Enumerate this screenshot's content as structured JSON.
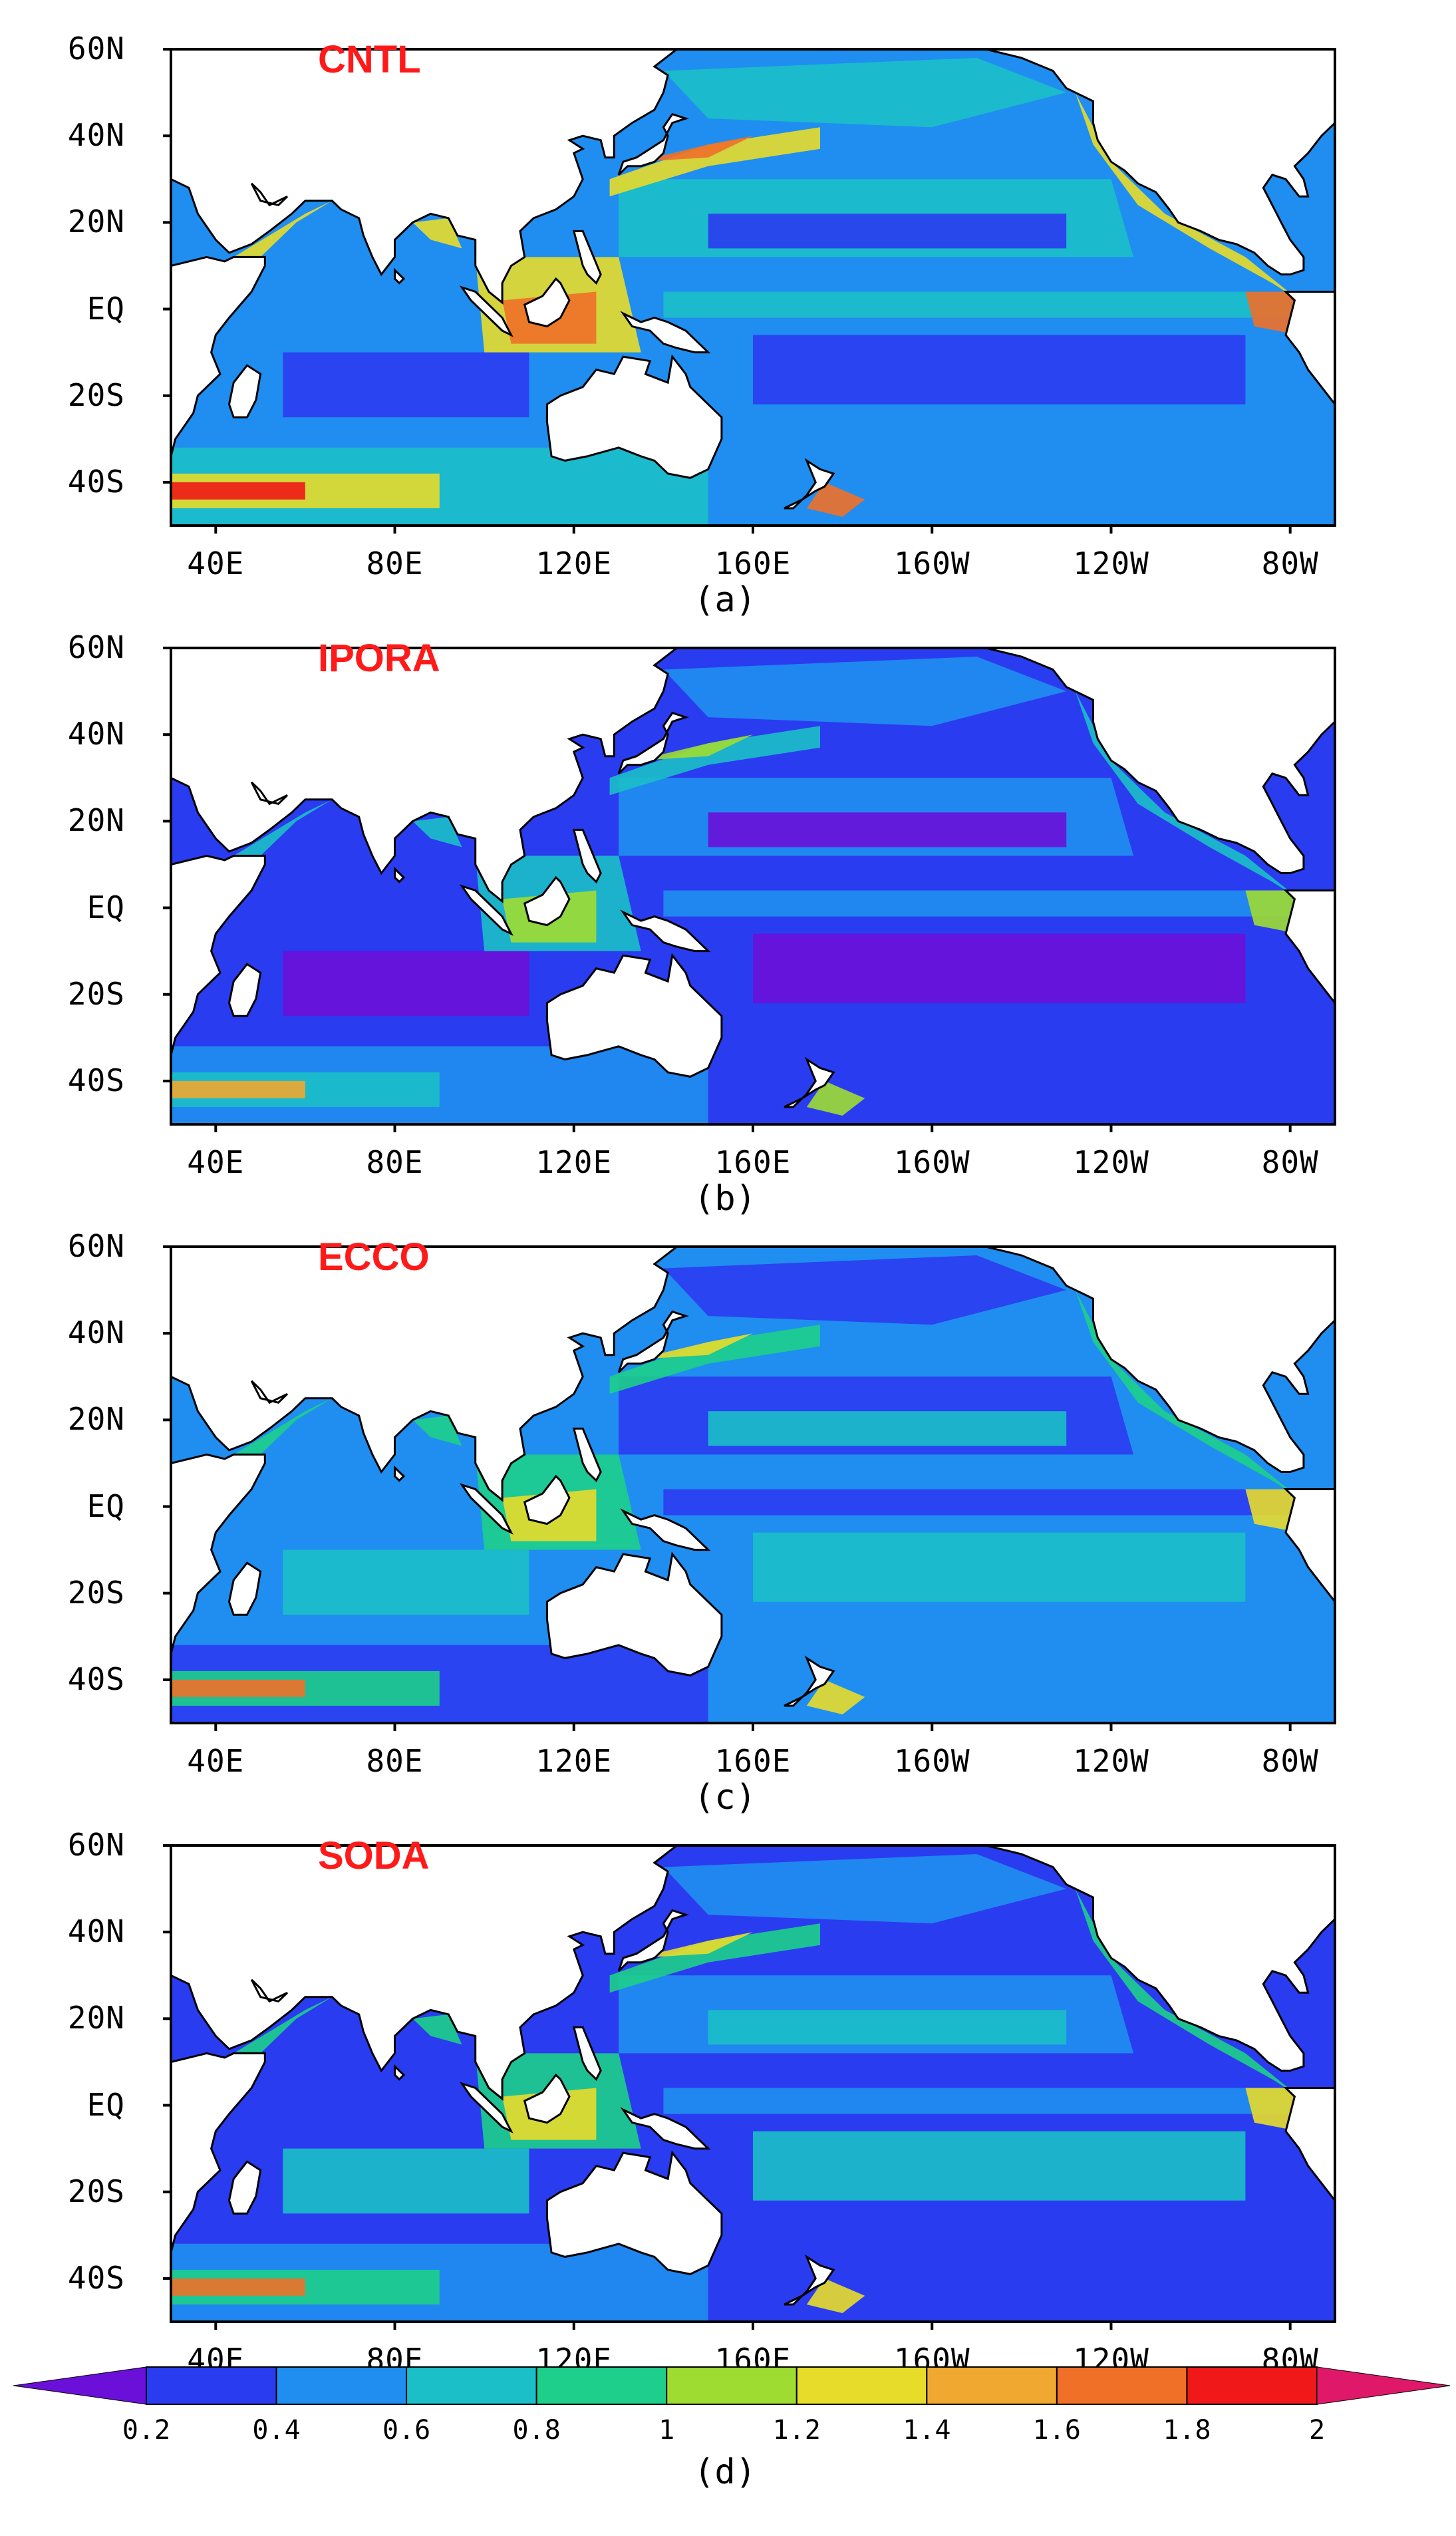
{
  "lat_labels": [
    "60N",
    "40N",
    "20N",
    "EQ",
    "20S",
    "40S"
  ],
  "lon_labels": [
    "40E",
    "80E",
    "120E",
    "160E",
    "160W",
    "120W",
    "80W"
  ],
  "panels": [
    {
      "label": "CNTL",
      "letter": "(a)",
      "regime": "high"
    },
    {
      "label": "IPORA",
      "letter": "(b)",
      "regime": "low"
    },
    {
      "label": "ECCO",
      "letter": "(c)",
      "regime": "mid"
    },
    {
      "label": "SODA",
      "letter": "(d)",
      "regime": "lowmid"
    }
  ],
  "colorbar": {
    "ticks": [
      "0.2",
      "0.4",
      "0.6",
      "0.8",
      "1",
      "1.2",
      "1.4",
      "1.6",
      "1.8",
      "2"
    ],
    "colors": [
      "#6a10d8",
      "#2a3cf0",
      "#1f8ef0",
      "#1bbfc8",
      "#1dcf8a",
      "#9fdc32",
      "#e8dc2a",
      "#f0a830",
      "#f07028",
      "#f01818",
      "#e0186a"
    ],
    "letter": "(d)"
  },
  "land_color": "#ffffff",
  "coast_color": "#000000"
}
